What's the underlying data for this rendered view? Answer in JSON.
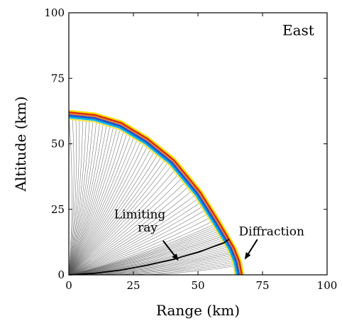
{
  "chart_data": {
    "type": "line",
    "xlabel": "Range (km)",
    "ylabel": "Altitude (km)",
    "xlim": [
      0,
      100
    ],
    "ylim": [
      0,
      100
    ],
    "xticks": [
      0,
      25,
      50,
      75,
      100
    ],
    "yticks": [
      0,
      25,
      50,
      75,
      100
    ],
    "panel_label": "East",
    "grid": false,
    "ray_fan": {
      "count": 70,
      "origin": [
        0,
        0
      ],
      "color": "#555555"
    },
    "limiting_ray": {
      "x": [
        0,
        10,
        20,
        30,
        40,
        50,
        60,
        62
      ],
      "y": [
        0,
        0.6,
        1.8,
        3.6,
        5.8,
        8.6,
        12.2,
        13.5
      ],
      "color": "#000000"
    },
    "wavefront": {
      "points": [
        {
          "x": 0,
          "y": 61
        },
        {
          "x": 10,
          "y": 60
        },
        {
          "x": 20,
          "y": 57
        },
        {
          "x": 30,
          "y": 51
        },
        {
          "x": 40,
          "y": 43
        },
        {
          "x": 50,
          "y": 31
        },
        {
          "x": 57,
          "y": 20
        },
        {
          "x": 60,
          "y": 15
        },
        {
          "x": 63,
          "y": 10
        },
        {
          "x": 65,
          "y": 5
        },
        {
          "x": 66,
          "y": 0
        }
      ],
      "bands": [
        {
          "offset": 1.6,
          "color": "#ffe000",
          "width": 2.5
        },
        {
          "offset": 1.0,
          "color": "#d42d0c",
          "width": 2.5
        },
        {
          "offset": 0.4,
          "color": "#f07a1a",
          "width": 1.5
        },
        {
          "offset": -0.2,
          "color": "#2453c9",
          "width": 3.0
        },
        {
          "offset": -0.9,
          "color": "#00b2e8",
          "width": 2.5
        },
        {
          "offset": -1.6,
          "color": "#f5e44a",
          "width": 2.0
        }
      ]
    },
    "annotations": [
      {
        "text": "Limiting",
        "x": 27.5,
        "y": 21.5
      },
      {
        "text": "ray",
        "x": 30.5,
        "y": 16.5
      },
      {
        "text": "Diffraction",
        "x": 78.5,
        "y": 15
      }
    ],
    "arrows": [
      {
        "from": [
          36.5,
          13
        ],
        "to": [
          42,
          6
        ]
      },
      {
        "from": [
          73,
          13.5
        ],
        "to": [
          68.5,
          6.5
        ]
      }
    ]
  }
}
